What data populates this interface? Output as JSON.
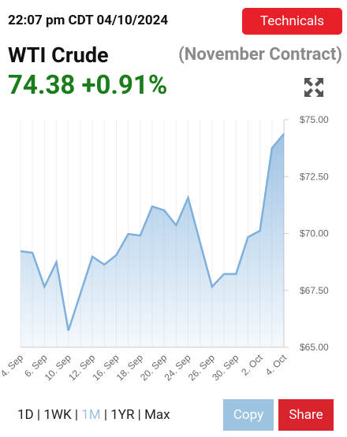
{
  "header": {
    "timestamp": "22:07 pm CDT 04/10/2024",
    "button": "Technicals",
    "name": "WTI Crude",
    "contract": "(November Contract)",
    "price": "74.38",
    "change": "+0.91%"
  },
  "chart_data": {
    "type": "area",
    "categories": [
      "4. Sep",
      null,
      "6. Sep",
      null,
      "10. Sep",
      null,
      "12. Sep",
      null,
      "16. Sep",
      null,
      "18. Sep",
      null,
      "20. Sep",
      null,
      "24. Sep",
      null,
      "26. Sep",
      null,
      "30. Sep",
      null,
      "2. Oct",
      null,
      "4. Oct"
    ],
    "series": [
      {
        "color": "#7fb0dc",
        "values": [
          69.22,
          69.15,
          67.66,
          68.74,
          65.73,
          67.35,
          68.98,
          68.63,
          69.05,
          69.98,
          69.91,
          71.19,
          71.02,
          70.36,
          71.57,
          69.6,
          67.66,
          68.22,
          68.22,
          69.84,
          70.12,
          73.75,
          74.38
        ]
      }
    ],
    "ylim": [
      65,
      75
    ],
    "yticks": [
      {
        "value": 65,
        "label": "$65.00"
      },
      {
        "value": 67.5,
        "label": "$67.50"
      },
      {
        "value": 70,
        "label": "$70.00"
      },
      {
        "value": 72.5,
        "label": "$72.50"
      },
      {
        "value": 75,
        "label": "$75.00"
      }
    ],
    "grid": true
  },
  "footer": {
    "ranges": [
      "1D",
      "1WK",
      "1M",
      "1YR",
      "Max"
    ],
    "copy": "Copy",
    "share": "Share"
  }
}
